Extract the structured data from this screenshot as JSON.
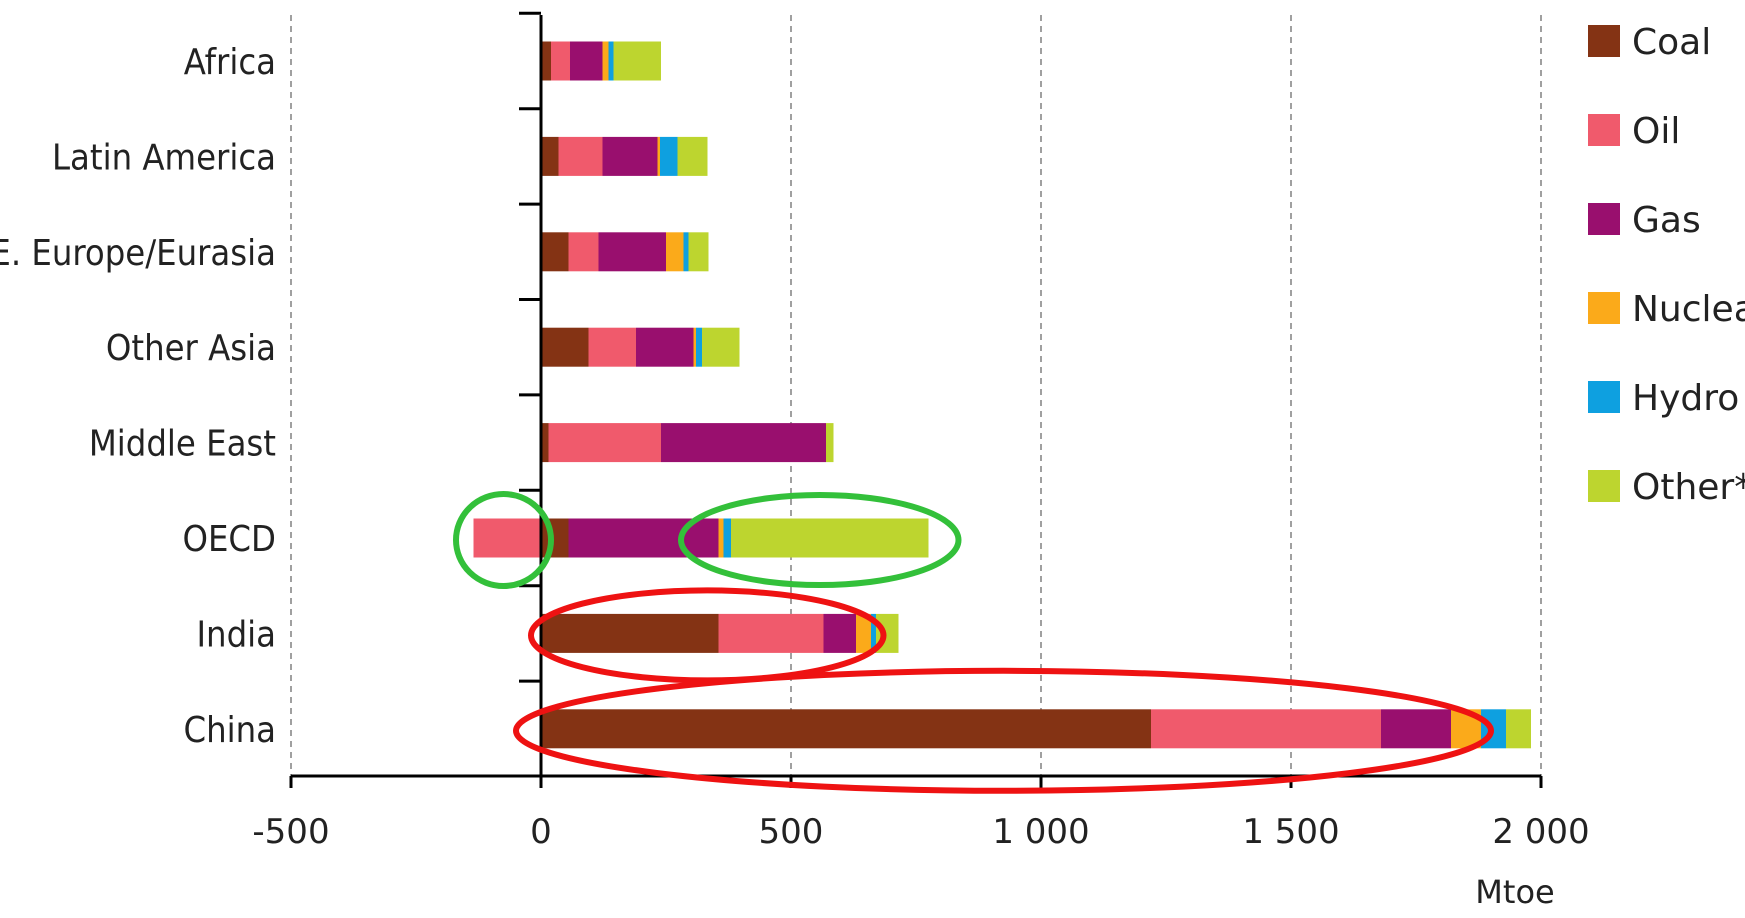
{
  "chart_data": {
    "type": "bar",
    "orientation": "horizontal",
    "stacked": true,
    "categories": [
      "Africa",
      "Latin America",
      "E. Europe/Eurasia",
      "Other Asia",
      "Middle East",
      "OECD",
      "India",
      "China"
    ],
    "series": [
      {
        "name": "Coal",
        "color": "#843314",
        "values": [
          20,
          35,
          55,
          95,
          15,
          55,
          355,
          1220
        ]
      },
      {
        "name": "Oil",
        "color": "#f05a6c",
        "values": [
          38,
          88,
          60,
          95,
          225,
          -135,
          210,
          460
        ]
      },
      {
        "name": "Gas",
        "color": "#990f6e",
        "values": [
          65,
          110,
          135,
          115,
          330,
          300,
          65,
          140
        ]
      },
      {
        "name": "Nuclear",
        "color": "#fbaa1a",
        "values": [
          12,
          5,
          35,
          5,
          0,
          10,
          30,
          60
        ]
      },
      {
        "name": "Hydro",
        "color": "#0ea0e0",
        "values": [
          10,
          35,
          10,
          12,
          0,
          15,
          10,
          50
        ]
      },
      {
        "name": "Other*",
        "color": "#bdd52f",
        "values": [
          95,
          60,
          40,
          75,
          15,
          395,
          45,
          50
        ]
      }
    ],
    "xlim": [
      -500,
      2000
    ],
    "xticks": [
      -500,
      0,
      500,
      1000,
      1500,
      2000
    ],
    "xtick_labels": [
      "-500",
      "0",
      "500",
      "1 000",
      "1 500",
      "2 000"
    ],
    "xlabel": "Mtoe",
    "grid": "vertical dashed",
    "legend_position": "right",
    "annotations": [
      {
        "shape": "ellipse",
        "color": "#33c03a",
        "target": "OECD",
        "x_range": [
          -170,
          20
        ]
      },
      {
        "shape": "ellipse",
        "color": "#33c03a",
        "target": "OECD",
        "x_range": [
          280,
          835
        ]
      },
      {
        "shape": "ellipse",
        "color": "#ee1212",
        "target": "India",
        "x_range": [
          -20,
          685
        ]
      },
      {
        "shape": "ellipse",
        "color": "#ee1212",
        "target": "China",
        "x_range": [
          -50,
          1900
        ]
      }
    ]
  }
}
